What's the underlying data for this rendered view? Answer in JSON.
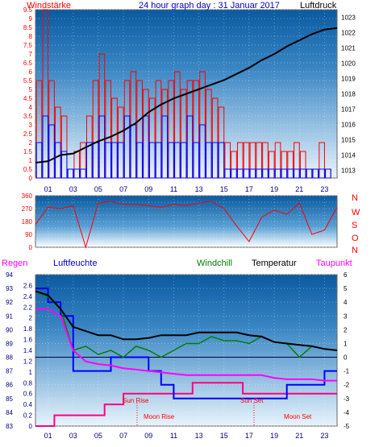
{
  "header": {
    "title": "24 hour graph day : 31 Januar 2017",
    "left_label": "Windstärke",
    "right_label": "Luftdruck"
  },
  "panel3_labels": {
    "regen": "Regen",
    "luftfeuchte": "Luftfeuchte",
    "windchill": "Windchill",
    "temperatur": "Temperatur",
    "taupunkt": "Taupunkt"
  },
  "annotations": {
    "sun_rise": "Sun Rise",
    "sun_set": "Sun Set",
    "moon_rise": "Moon Rise",
    "moon_set": "Moon Set"
  },
  "compass": [
    "N",
    "W",
    "S",
    "O",
    "N"
  ],
  "colors": {
    "wind_red": "#ff0000",
    "wind_blue": "#0000ff",
    "pressure": "#000000",
    "humidity": "#0000ff",
    "windchill": "#008000",
    "temperature": "#000000",
    "dewpoint": "#ff00ff",
    "rain": "#ff0080",
    "label_red": "#ff0000",
    "label_blue": "#0000c0",
    "label_darkblue": "#000080",
    "label_magenta": "#ff00ff",
    "label_green": "#008000"
  },
  "chart_data": [
    {
      "type": "bar",
      "id": "wind",
      "xlim": [
        0,
        24
      ],
      "x_ticks": [
        "01",
        "03",
        "05",
        "07",
        "09",
        "11",
        "13",
        "15",
        "17",
        "19",
        "21",
        "23"
      ],
      "ylim": [
        0,
        9.5
      ],
      "y_ticks": [
        0,
        0.5,
        1,
        1.5,
        2,
        2.5,
        3,
        3.5,
        4,
        4.5,
        5,
        5.5,
        6,
        6.5,
        7,
        7.5,
        8,
        8.5,
        9,
        9.5
      ],
      "series": [
        {
          "x": [
            0.5,
            1.0,
            1.5,
            2.0,
            2.5,
            3.0,
            3.5,
            4.0,
            4.5,
            5.0,
            5.5,
            6.0,
            6.5,
            7.0,
            7.5,
            8.0,
            8.5,
            9.0,
            9.5,
            10.0,
            10.5,
            11.0,
            11.5,
            12.0,
            12.5,
            13.0,
            13.5,
            14.0,
            14.5,
            15.0,
            15.5,
            16.0,
            16.5,
            17.0,
            17.5,
            18.0,
            18.5,
            19.0,
            19.5,
            20.0,
            20.5,
            21.0,
            21.5,
            22.0,
            22.5,
            23.0,
            23.5
          ],
          "values": [
            5.5,
            9.5,
            5.5,
            4.0,
            3.5,
            0.5,
            1.5,
            2.0,
            3.5,
            5.5,
            7.0,
            5.5,
            4.5,
            4.0,
            5.5,
            6.0,
            5.5,
            5.0,
            4.5,
            5.5,
            5.0,
            5.5,
            6.0,
            5.0,
            5.5,
            5.5,
            6.0,
            5.0,
            4.5,
            4.0,
            2.0,
            1.5,
            2.0,
            2.0,
            2.0,
            2.0,
            2.0,
            1.5,
            2.0,
            1.5,
            1.5,
            2.0,
            1.5,
            0.5,
            0.5,
            2.0,
            0.5
          ]
        },
        {
          "x": [
            0.5,
            1.0,
            1.5,
            2.0,
            2.5,
            3.0,
            3.5,
            4.0,
            4.5,
            5.0,
            5.5,
            6.0,
            6.5,
            7.0,
            7.5,
            8.0,
            8.5,
            9.0,
            9.5,
            10.0,
            10.5,
            11.0,
            11.5,
            12.0,
            12.5,
            13.0,
            13.5,
            14.0,
            14.5,
            15.0,
            15.5,
            16.0,
            16.5,
            17.0,
            17.5,
            18.0,
            18.5,
            19.0,
            19.5,
            20.0,
            20.5,
            21.0,
            21.5,
            22.0,
            22.5,
            23.0,
            23.5
          ],
          "values": [
            2.0,
            3.5,
            3.0,
            2.0,
            1.5,
            0.5,
            0.5,
            0.5,
            2.0,
            2.0,
            3.5,
            2.0,
            2.0,
            2.0,
            3.5,
            3.0,
            2.0,
            3.5,
            2.0,
            2.0,
            3.5,
            2.0,
            2.0,
            2.0,
            3.5,
            2.0,
            3.0,
            2.0,
            2.0,
            2.0,
            0.5,
            0.5,
            0.5,
            0.5,
            0.5,
            0.5,
            0.5,
            0.5,
            0.5,
            0.5,
            0.5,
            0.5,
            0.5,
            0.5,
            0.5,
            0.5,
            0.5
          ]
        }
      ],
      "right_axis": {
        "ylim": [
          1012.5,
          1023.5
        ],
        "y_ticks": [
          1013,
          1014,
          1015,
          1016,
          1017,
          1018,
          1019,
          1020,
          1021,
          1022,
          1023
        ],
        "x": [
          0,
          1,
          2,
          3,
          4,
          5,
          6,
          7,
          8,
          9,
          10,
          11,
          12,
          13,
          14,
          15,
          16,
          17,
          18,
          19,
          20,
          21,
          22,
          23,
          24
        ],
        "values": [
          1013.5,
          1013.6,
          1014.0,
          1014.1,
          1014.5,
          1014.9,
          1015.2,
          1015.6,
          1016.1,
          1016.8,
          1017.3,
          1017.7,
          1018.0,
          1018.3,
          1018.6,
          1018.9,
          1019.3,
          1019.7,
          1020.2,
          1020.6,
          1021.1,
          1021.5,
          1021.9,
          1022.2,
          1022.3
        ]
      }
    },
    {
      "type": "line",
      "id": "wind_direction",
      "xlim": [
        0,
        24
      ],
      "ylim": [
        0,
        360
      ],
      "y_ticks": [
        0,
        45,
        90,
        135,
        180,
        225,
        270,
        315,
        360
      ],
      "x": [
        0,
        1,
        2,
        3,
        4,
        5,
        6,
        7,
        8,
        9,
        10,
        11,
        12,
        13,
        14,
        15,
        16,
        17,
        18,
        19,
        20,
        21,
        22,
        23,
        24
      ],
      "values": [
        160,
        280,
        270,
        290,
        0,
        310,
        320,
        300,
        300,
        290,
        280,
        300,
        290,
        310,
        320,
        270,
        150,
        40,
        210,
        260,
        230,
        310,
        90,
        120,
        280
      ]
    },
    {
      "type": "line",
      "id": "humidity_temperature",
      "xlim": [
        0,
        24
      ],
      "left_axis_humidity": {
        "ylim": [
          83,
          94
        ],
        "y_ticks": [
          83,
          84,
          85,
          86,
          87,
          88,
          89,
          90,
          91,
          92,
          93,
          94
        ]
      },
      "left_axis_rain": {
        "ylim": [
          0,
          2.8
        ],
        "y_ticks": [
          0,
          0.2,
          0.4,
          0.6,
          0.8,
          1,
          1.2,
          1.4,
          1.6,
          1.8,
          2,
          2.2,
          2.4,
          2.6
        ]
      },
      "right_axis": {
        "ylim": [
          -5,
          6
        ],
        "y_ticks": [
          -5,
          -4,
          -3,
          -2,
          -1,
          0,
          1,
          2,
          3,
          4,
          5,
          6
        ]
      },
      "series": [
        {
          "name": "Luftfeuchte",
          "x": [
            0,
            1,
            2,
            3,
            4,
            5,
            6,
            7,
            8,
            9,
            10,
            11,
            12,
            13,
            14,
            15,
            16,
            17,
            18,
            19,
            20,
            21,
            22,
            23,
            24
          ],
          "values": [
            93,
            92,
            91,
            87,
            87,
            87,
            88,
            88,
            88,
            87,
            86,
            85,
            85,
            85,
            85,
            85,
            85,
            85,
            85,
            85,
            86,
            86,
            86,
            87,
            87
          ]
        },
        {
          "name": "Temperatur",
          "x": [
            0,
            1,
            2,
            3,
            4,
            5,
            6,
            7,
            8,
            9,
            10,
            11,
            12,
            13,
            14,
            15,
            16,
            17,
            18,
            19,
            20,
            21,
            22,
            23,
            24
          ],
          "values": [
            4.8,
            4.5,
            3.5,
            2.2,
            1.9,
            1.6,
            1.6,
            1.3,
            1.3,
            1.4,
            1.6,
            1.6,
            1.6,
            1.8,
            1.8,
            1.8,
            1.8,
            1.6,
            1.5,
            1.1,
            1.0,
            0.9,
            0.8,
            0.6,
            0.5
          ]
        },
        {
          "name": "Windchill",
          "x": [
            0,
            1,
            2,
            3,
            4,
            5,
            6,
            7,
            8,
            9,
            10,
            11,
            12,
            13,
            14,
            15,
            16,
            17,
            18,
            19,
            20,
            21,
            22,
            23,
            24
          ],
          "values": [
            4.8,
            4.4,
            3.5,
            0.5,
            0.8,
            0.2,
            0.5,
            0.0,
            0.8,
            0.5,
            0.0,
            0.5,
            1.0,
            1.0,
            1.5,
            1.2,
            1.2,
            1.0,
            1.5,
            1.1,
            1.0,
            0.0,
            0.8,
            0.6,
            0.5
          ]
        },
        {
          "name": "Taupunkt",
          "x": [
            0,
            1,
            2,
            3,
            4,
            5,
            6,
            7,
            8,
            9,
            10,
            11,
            12,
            13,
            14,
            15,
            16,
            17,
            18,
            19,
            20,
            21,
            22,
            23,
            24
          ],
          "values": [
            3.5,
            3.5,
            3.0,
            0.5,
            -0.3,
            -0.5,
            -0.6,
            -0.8,
            -0.9,
            -1.0,
            -1.1,
            -1.2,
            -1.3,
            -1.3,
            -1.3,
            -1.3,
            -1.3,
            -1.3,
            -1.3,
            -1.5,
            -1.6,
            -1.6,
            -1.6,
            -1.7,
            -1.7
          ]
        },
        {
          "name": "Regen",
          "x": [
            0,
            1,
            1.5,
            3,
            5,
            5.5,
            7,
            12,
            12.5,
            16,
            16.5,
            21,
            24
          ],
          "values": [
            0,
            0,
            0.2,
            0.2,
            0.2,
            0.4,
            0.6,
            0.6,
            0.8,
            0.8,
            0.6,
            0.6,
            0.6
          ]
        }
      ]
    }
  ]
}
